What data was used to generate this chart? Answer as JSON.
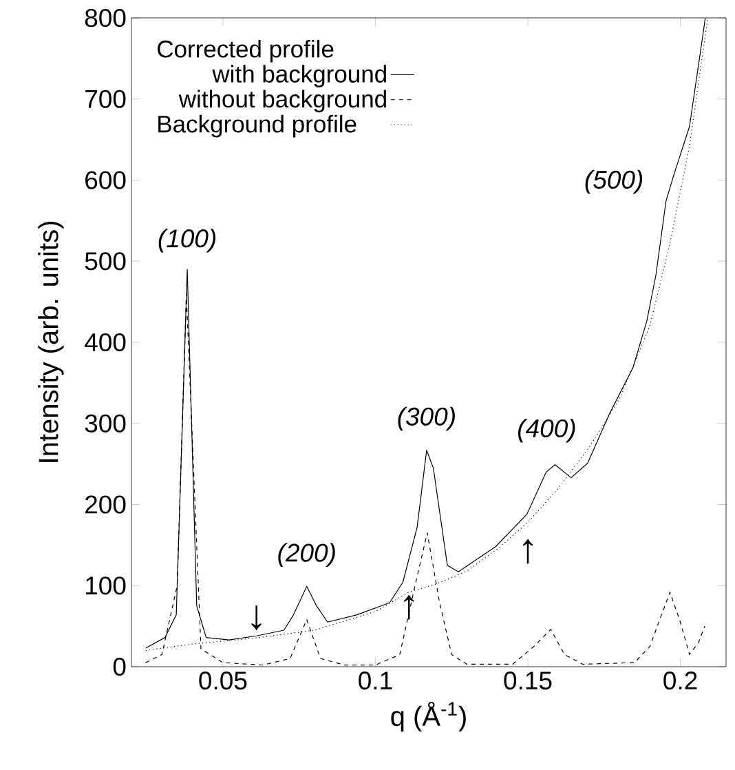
{
  "chart_data": {
    "type": "line",
    "xlabel": "q (Å$^{-1}$)",
    "ylabel": "Intensity (arb. units)",
    "legend_title": "Corrected profile",
    "xlim": [
      0.02,
      0.215
    ],
    "ylim": [
      0,
      800
    ],
    "xticks": [
      0.05,
      0.1,
      0.15,
      0.2
    ],
    "yticks": [
      0,
      100,
      200,
      300,
      400,
      500,
      600,
      700,
      800
    ],
    "grid": false,
    "legend": "top left",
    "marker": "none",
    "series": [
      {
        "name": "with background",
        "color": "#000000",
        "line_style": "solid",
        "x": [
          0.0247,
          0.031,
          0.0347,
          0.0383,
          0.0414,
          0.0445,
          0.052,
          0.061,
          0.07,
          0.073,
          0.0775,
          0.0807,
          0.0843,
          0.094,
          0.1047,
          0.109,
          0.1137,
          0.1168,
          0.119,
          0.1236,
          0.1272,
          0.1394,
          0.1497,
          0.156,
          0.1589,
          0.1642,
          0.1696,
          0.1768,
          0.1845,
          0.189,
          0.192,
          0.1953,
          0.198,
          0.203,
          0.2057,
          0.2082
        ],
        "values": [
          23,
          36,
          64,
          490,
          75,
          36,
          33,
          38,
          45,
          63,
          99,
          75,
          55,
          64,
          79,
          104,
          172,
          267,
          245,
          125,
          117,
          148,
          188,
          240,
          249,
          233,
          251,
          312,
          369,
          426,
          483,
          574,
          608,
          666,
          735,
          800
        ]
      },
      {
        "name": "without background",
        "color": "#000000",
        "line_style": "dashed",
        "x": [
          0.0246,
          0.03,
          0.035,
          0.038,
          0.0428,
          0.05,
          0.063,
          0.072,
          0.0775,
          0.082,
          0.09,
          0.1,
          0.108,
          0.113,
          0.117,
          0.121,
          0.125,
          0.13,
          0.145,
          0.152,
          0.1575,
          0.162,
          0.168,
          0.185,
          0.19,
          0.1966,
          0.2,
          0.203,
          0.206,
          0.208
        ],
        "values": [
          5,
          15,
          100,
          460,
          22,
          5,
          2,
          10,
          58,
          10,
          2,
          2,
          15,
          100,
          165,
          80,
          15,
          3,
          3,
          25,
          46,
          15,
          3,
          5,
          25,
          92,
          55,
          15,
          30,
          50
        ]
      },
      {
        "name": "Background profile",
        "color": "#000000",
        "line_style": "dotted",
        "x": [
          0.0247,
          0.04,
          0.06,
          0.08,
          0.1,
          0.111,
          0.12,
          0.13,
          0.14,
          0.15,
          0.16,
          0.17,
          0.18,
          0.19,
          0.1966,
          0.203,
          0.209
        ],
        "values": [
          20,
          28,
          35,
          45,
          68,
          92,
          102,
          118,
          145,
          178,
          220,
          270,
          330,
          420,
          522,
          642,
          800
        ]
      }
    ],
    "annotations": [
      {
        "text": "(100)",
        "x": 0.0383,
        "y": 490
      },
      {
        "text": "(200)",
        "x": 0.0775,
        "y": 99
      },
      {
        "text": "(300)",
        "x": 0.1168,
        "y": 267
      },
      {
        "text": "(400)",
        "x": 0.1589,
        "y": 249
      },
      {
        "text": "(500)",
        "x": 0.198,
        "y": 608
      },
      {
        "text": "↓",
        "x": 0.061,
        "y": 38
      },
      {
        "text": "↑",
        "x": 0.111,
        "y": 92
      },
      {
        "text": "↑",
        "x": 0.15,
        "y": 178
      }
    ]
  }
}
